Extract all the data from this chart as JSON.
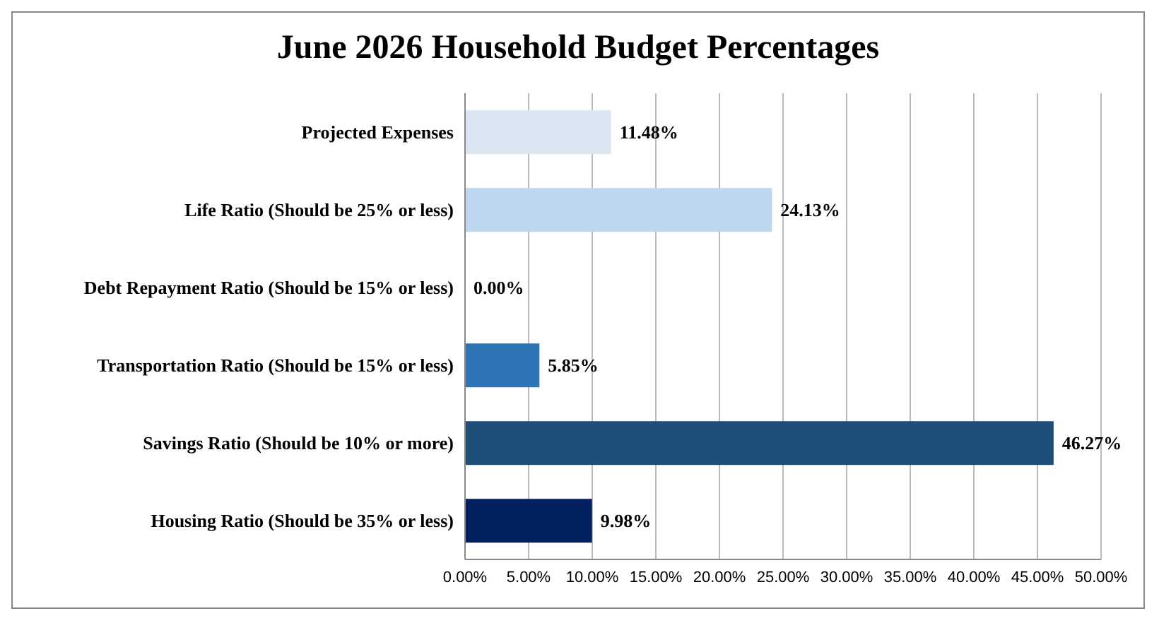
{
  "chart_data": {
    "type": "bar",
    "orientation": "horizontal",
    "title": "June 2026 Household Budget Percentages",
    "categories": [
      "Projected Expenses",
      "Life Ratio (Should be 25% or less)",
      "Debt Repayment Ratio (Should be 15% or less)",
      "Transportation Ratio (Should be 15% or less)",
      "Savings Ratio (Should be 10% or more)",
      "Housing Ratio (Should be 35% or less)"
    ],
    "values": [
      11.48,
      24.13,
      0,
      5.85,
      46.27,
      9.98
    ],
    "value_labels": [
      "11.48%",
      "24.13%",
      "0.00%",
      "5.85%",
      "46.27%",
      "9.98%"
    ],
    "colors": [
      "#dce6f2",
      "#bdd7ee",
      "#9dc3e6",
      "#2e75b6",
      "#1f4e79",
      "#002060"
    ],
    "xlim": [
      0,
      50
    ],
    "xticks": [
      {
        "value": 0,
        "label": "0.00%"
      },
      {
        "value": 5,
        "label": "5.00%"
      },
      {
        "value": 10,
        "label": "10.00%"
      },
      {
        "value": 15,
        "label": "15.00%"
      },
      {
        "value": 20,
        "label": "20.00%"
      },
      {
        "value": 25,
        "label": "25.00%"
      },
      {
        "value": 30,
        "label": "30.00%"
      },
      {
        "value": 35,
        "label": "35.00%"
      },
      {
        "value": 40,
        "label": "40.00%"
      },
      {
        "value": 45,
        "label": "45.00%"
      },
      {
        "value": 50,
        "label": "50.00%"
      }
    ],
    "grid": "x",
    "legend": false
  }
}
